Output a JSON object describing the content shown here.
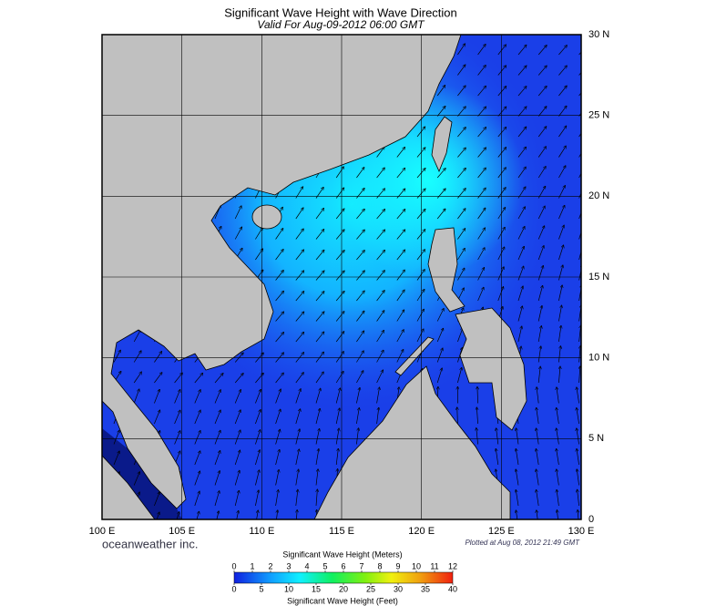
{
  "header": {
    "title": "Significant Wave Height with Wave Direction",
    "subtitle": "Valid For Aug-09-2012 06:00 GMT"
  },
  "map": {
    "lon_lim": [
      100,
      130
    ],
    "lat_lim": [
      0,
      30
    ],
    "lon_ticks": [
      {
        "value": 100,
        "label": "100 E"
      },
      {
        "value": 105,
        "label": "105 E"
      },
      {
        "value": 110,
        "label": "110 E"
      },
      {
        "value": 115,
        "label": "115 E"
      },
      {
        "value": 120,
        "label": "120 E"
      },
      {
        "value": 125,
        "label": "125 E"
      },
      {
        "value": 130,
        "label": "130 E"
      }
    ],
    "lat_ticks": [
      0,
      {
        "value": 5,
        "label": "5 N"
      },
      {
        "value": 10,
        "label": "10 N"
      },
      {
        "value": 15,
        "label": "15 N"
      },
      {
        "value": 20,
        "label": "20 N"
      },
      {
        "value": 25,
        "label": "25 N"
      },
      {
        "value": 30,
        "label": "30 N"
      }
    ],
    "brand": "oceanweather inc.",
    "plotted": "Plotted at Aug 08, 2012 21:49 GMT"
  },
  "colorbar": {
    "meters_title": "Significant Wave Height (Meters)",
    "feet_title": "Significant Wave Height (Feet)",
    "meters_lim": [
      0,
      12
    ],
    "meters_ticks": [
      0,
      1,
      2,
      3,
      4,
      5,
      6,
      7,
      8,
      9,
      10,
      11,
      12
    ],
    "feet_lim": [
      0,
      40
    ],
    "feet_ticks": [
      0,
      5,
      10,
      15,
      20,
      25,
      30,
      35,
      40
    ]
  }
}
